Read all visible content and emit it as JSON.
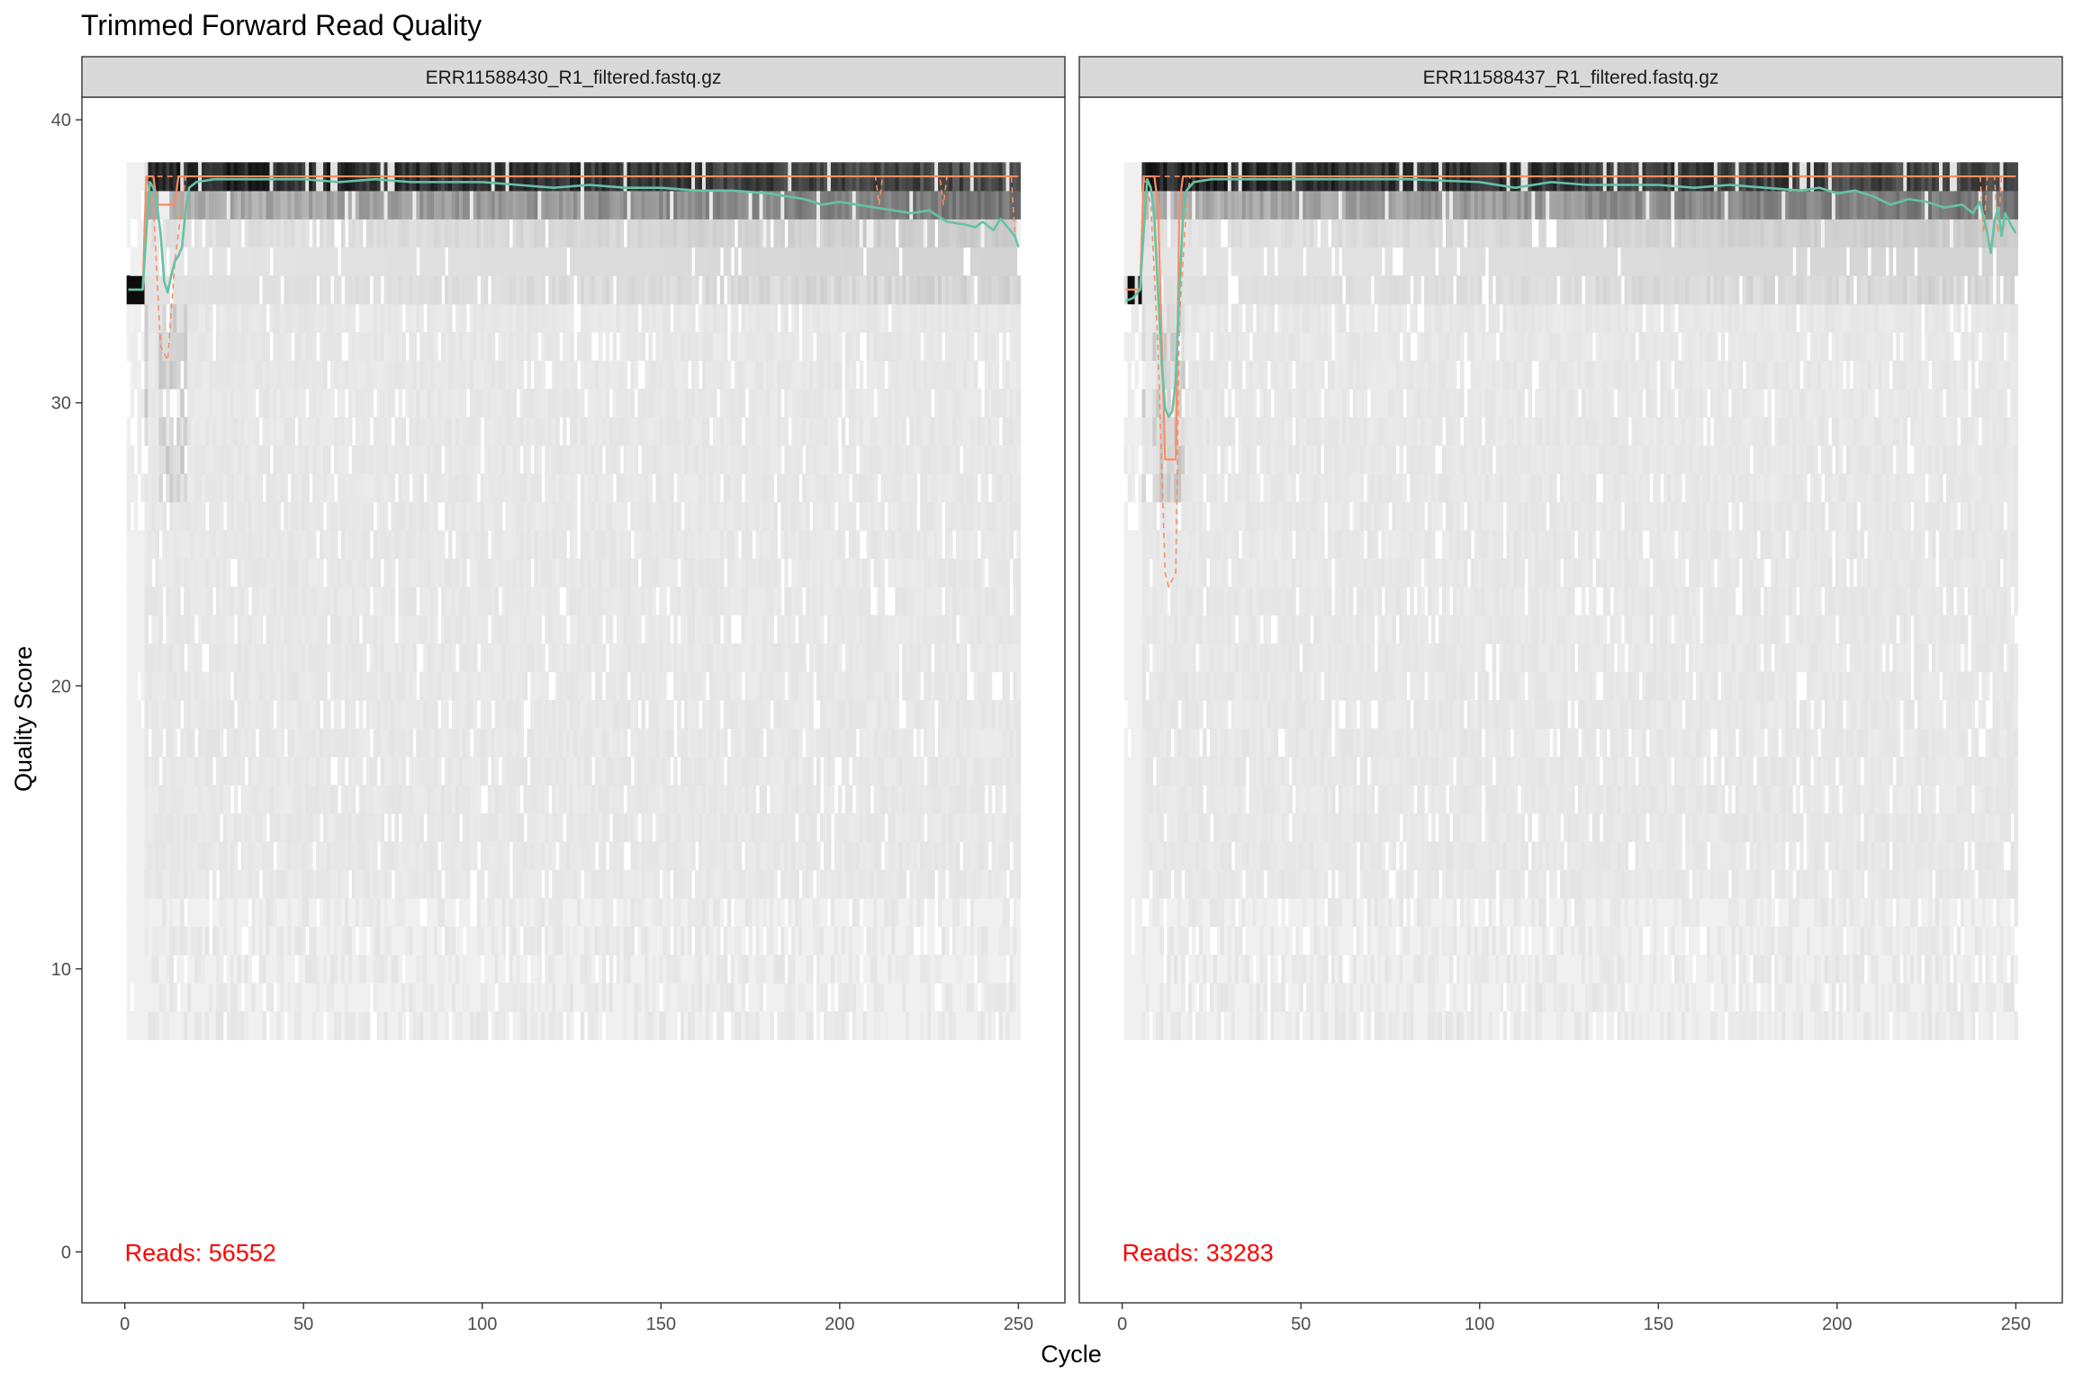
{
  "chart_data": {
    "type": "heatmap",
    "title": "Trimmed Forward Read Quality",
    "xlabel": "Cycle",
    "ylabel": "Quality Score",
    "xlim": [
      -12,
      263
    ],
    "ylim": [
      -1.8,
      40.8
    ],
    "xticks": [
      0,
      50,
      100,
      150,
      200,
      250
    ],
    "yticks": [
      0,
      10,
      20,
      30,
      40
    ],
    "grid": false,
    "legend": "none",
    "colors": {
      "mean_line": "#66C2A5",
      "median_line": "#FC8D62",
      "quartile_line": "#FC8D62",
      "heatmap_low": "#ffffff",
      "heatmap_high": "#000000",
      "reads_text": "#ff0000",
      "strip_fill": "#d9d9d9"
    },
    "panels": [
      {
        "label": "ERR11588430_R1_filtered.fastq.gz",
        "reads_label": "Reads:  56552",
        "reads": 56552,
        "cycles": 250,
        "mean_quality": [
          [
            1,
            34
          ],
          [
            3,
            34
          ],
          [
            4,
            34
          ],
          [
            5,
            34
          ],
          [
            6,
            36
          ],
          [
            7,
            37.8
          ],
          [
            8,
            37.6
          ],
          [
            9,
            37
          ],
          [
            10,
            36
          ],
          [
            11,
            34.3
          ],
          [
            12,
            33.9
          ],
          [
            13,
            34.5
          ],
          [
            14,
            35
          ],
          [
            15,
            35.2
          ],
          [
            16,
            35.5
          ],
          [
            17,
            36.8
          ],
          [
            18,
            37.6
          ],
          [
            20,
            37.8
          ],
          [
            25,
            37.9
          ],
          [
            30,
            37.9
          ],
          [
            40,
            37.9
          ],
          [
            50,
            37.9
          ],
          [
            60,
            37.8
          ],
          [
            70,
            37.9
          ],
          [
            80,
            37.8
          ],
          [
            90,
            37.8
          ],
          [
            100,
            37.8
          ],
          [
            110,
            37.7
          ],
          [
            120,
            37.6
          ],
          [
            130,
            37.7
          ],
          [
            140,
            37.6
          ],
          [
            150,
            37.6
          ],
          [
            160,
            37.5
          ],
          [
            170,
            37.5
          ],
          [
            180,
            37.4
          ],
          [
            185,
            37.3
          ],
          [
            190,
            37.2
          ],
          [
            195,
            37.0
          ],
          [
            200,
            37.1
          ],
          [
            205,
            37.0
          ],
          [
            210,
            36.9
          ],
          [
            215,
            36.8
          ],
          [
            220,
            36.7
          ],
          [
            225,
            36.8
          ],
          [
            230,
            36.4
          ],
          [
            235,
            36.3
          ],
          [
            238,
            36.2
          ],
          [
            240,
            36.4
          ],
          [
            243,
            36.1
          ],
          [
            245,
            36.5
          ],
          [
            247,
            36.2
          ],
          [
            249,
            35.9
          ],
          [
            250,
            35.5
          ]
        ],
        "median_quality": [
          [
            1,
            34
          ],
          [
            5,
            34
          ],
          [
            6,
            38
          ],
          [
            8,
            38
          ],
          [
            9,
            37
          ],
          [
            14,
            37
          ],
          [
            15,
            38
          ],
          [
            250,
            38
          ]
        ],
        "q25_quality": [
          [
            1,
            34
          ],
          [
            5,
            34
          ],
          [
            6,
            38
          ],
          [
            8,
            37
          ],
          [
            10,
            32
          ],
          [
            12,
            31.5
          ],
          [
            14,
            35
          ],
          [
            16,
            37
          ],
          [
            17,
            38
          ],
          [
            210,
            38
          ],
          [
            211,
            37
          ],
          [
            212,
            38
          ],
          [
            228,
            38
          ],
          [
            229,
            37
          ],
          [
            230,
            38
          ],
          [
            248,
            38
          ],
          [
            249,
            36
          ],
          [
            250,
            36
          ]
        ],
        "q75_quality": [
          [
            1,
            34
          ],
          [
            5,
            34
          ],
          [
            6,
            38
          ],
          [
            250,
            38
          ]
        ]
      },
      {
        "label": "ERR11588437_R1_filtered.fastq.gz",
        "reads_label": "Reads:  33283",
        "reads": 33283,
        "cycles": 250,
        "mean_quality": [
          [
            1,
            33.6
          ],
          [
            3,
            33.7
          ],
          [
            5,
            34
          ],
          [
            6,
            36
          ],
          [
            7,
            37.9
          ],
          [
            8,
            37.6
          ],
          [
            9,
            36.5
          ],
          [
            10,
            34
          ],
          [
            11,
            31.5
          ],
          [
            12,
            29.8
          ],
          [
            13,
            29.5
          ],
          [
            14,
            29.7
          ],
          [
            15,
            30.8
          ],
          [
            16,
            34
          ],
          [
            17,
            36.5
          ],
          [
            18,
            37.5
          ],
          [
            20,
            37.8
          ],
          [
            25,
            37.9
          ],
          [
            40,
            37.9
          ],
          [
            60,
            37.9
          ],
          [
            80,
            37.9
          ],
          [
            100,
            37.8
          ],
          [
            110,
            37.6
          ],
          [
            120,
            37.8
          ],
          [
            130,
            37.7
          ],
          [
            140,
            37.7
          ],
          [
            150,
            37.7
          ],
          [
            160,
            37.6
          ],
          [
            170,
            37.7
          ],
          [
            180,
            37.6
          ],
          [
            190,
            37.5
          ],
          [
            195,
            37.6
          ],
          [
            200,
            37.4
          ],
          [
            205,
            37.5
          ],
          [
            210,
            37.3
          ],
          [
            215,
            37.0
          ],
          [
            220,
            37.2
          ],
          [
            225,
            37.1
          ],
          [
            230,
            36.9
          ],
          [
            235,
            37.0
          ],
          [
            238,
            36.7
          ],
          [
            240,
            37.1
          ],
          [
            242,
            36.0
          ],
          [
            243,
            35.3
          ],
          [
            244,
            36.4
          ],
          [
            245,
            36.9
          ],
          [
            246,
            35.9
          ],
          [
            247,
            36.7
          ],
          [
            249,
            36.2
          ],
          [
            250,
            36
          ]
        ],
        "median_quality": [
          [
            1,
            34
          ],
          [
            5,
            34
          ],
          [
            6,
            38
          ],
          [
            9,
            38
          ],
          [
            10,
            37
          ],
          [
            12,
            28
          ],
          [
            15,
            28
          ],
          [
            16,
            37
          ],
          [
            17,
            38
          ],
          [
            250,
            38
          ]
        ],
        "q25_quality": [
          [
            1,
            34
          ],
          [
            5,
            34
          ],
          [
            6,
            38
          ],
          [
            8,
            37
          ],
          [
            10,
            32
          ],
          [
            12,
            24
          ],
          [
            13,
            23.5
          ],
          [
            15,
            24
          ],
          [
            16,
            33
          ],
          [
            18,
            37
          ],
          [
            19,
            38
          ],
          [
            240,
            38
          ],
          [
            241,
            36
          ],
          [
            242,
            38
          ],
          [
            244,
            38
          ],
          [
            245,
            36
          ],
          [
            246,
            38
          ],
          [
            250,
            38
          ]
        ],
        "q75_quality": [
          [
            1,
            34
          ],
          [
            5,
            34
          ],
          [
            6,
            38
          ],
          [
            250,
            38
          ]
        ]
      }
    ]
  }
}
